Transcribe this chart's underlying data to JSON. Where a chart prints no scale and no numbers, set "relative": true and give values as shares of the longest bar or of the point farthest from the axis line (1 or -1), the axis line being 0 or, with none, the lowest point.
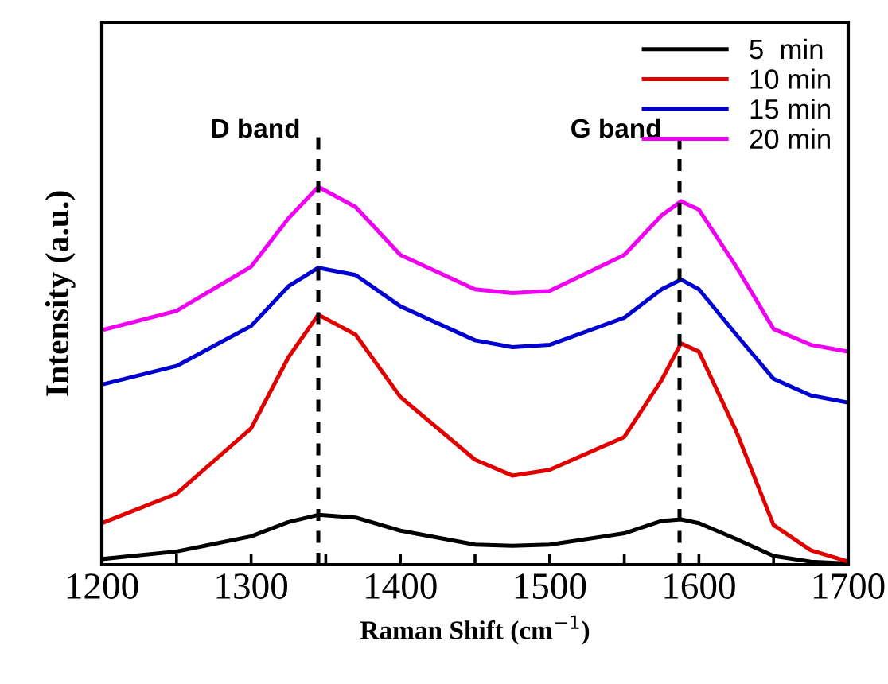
{
  "chart_data": {
    "type": "line",
    "relative": true,
    "xlabel": "Raman Shift (cm$^{−1}$)",
    "ylabel": "Intensity (a.u.)",
    "x": [
      1200,
      1250,
      1300,
      1325,
      1345,
      1370,
      1400,
      1450,
      1475,
      1500,
      1550,
      1575,
      1588,
      1600,
      1625,
      1650,
      1675,
      1700
    ],
    "xlim": [
      1200,
      1700
    ],
    "xticks": [
      1200,
      {
        "value": 1250,
        "label": null
      },
      1300,
      {
        "value": 1350,
        "label": null
      },
      1400,
      {
        "value": 1450,
        "label": null
      },
      1500,
      {
        "value": 1550,
        "label": null
      },
      1600,
      {
        "value": 1650,
        "label": null
      },
      1700
    ],
    "series": [
      {
        "name": "5  min",
        "color": "#000000",
        "values": [
          0.015,
          0.035,
          0.075,
          0.113,
          0.132,
          0.125,
          0.09,
          0.053,
          0.05,
          0.053,
          0.083,
          0.116,
          0.12,
          0.11,
          0.068,
          0.023,
          0.008,
          0.003
        ]
      },
      {
        "name": "10 min",
        "color": "#e00000",
        "values": [
          0.11,
          0.188,
          0.361,
          0.549,
          0.662,
          0.609,
          0.444,
          0.278,
          0.236,
          0.251,
          0.338,
          0.489,
          0.586,
          0.564,
          0.353,
          0.105,
          0.038,
          0.008
        ]
      },
      {
        "name": "15 min",
        "color": "#0000d0",
        "values": [
          0.477,
          0.526,
          0.632,
          0.737,
          0.786,
          0.767,
          0.684,
          0.594,
          0.576,
          0.582,
          0.654,
          0.729,
          0.755,
          0.729,
          0.609,
          0.492,
          0.448,
          0.429
        ]
      },
      {
        "name": "20 min",
        "color": "#f000f0",
        "values": [
          0.621,
          0.672,
          0.789,
          0.917,
          1.0,
          0.947,
          0.82,
          0.729,
          0.719,
          0.725,
          0.82,
          0.925,
          0.962,
          0.94,
          0.789,
          0.624,
          0.582,
          0.564
        ]
      }
    ],
    "ref_lines": [
      {
        "axis": "x",
        "value": 1345,
        "label": "D band",
        "color": "#000000",
        "line_style": "dashed"
      },
      {
        "axis": "x",
        "value": 1587,
        "label": "G band",
        "color": "#000000",
        "line_style": "dashed"
      }
    ],
    "legend": "top right",
    "grid": false,
    "marker": "none",
    "line_style": "solid"
  }
}
